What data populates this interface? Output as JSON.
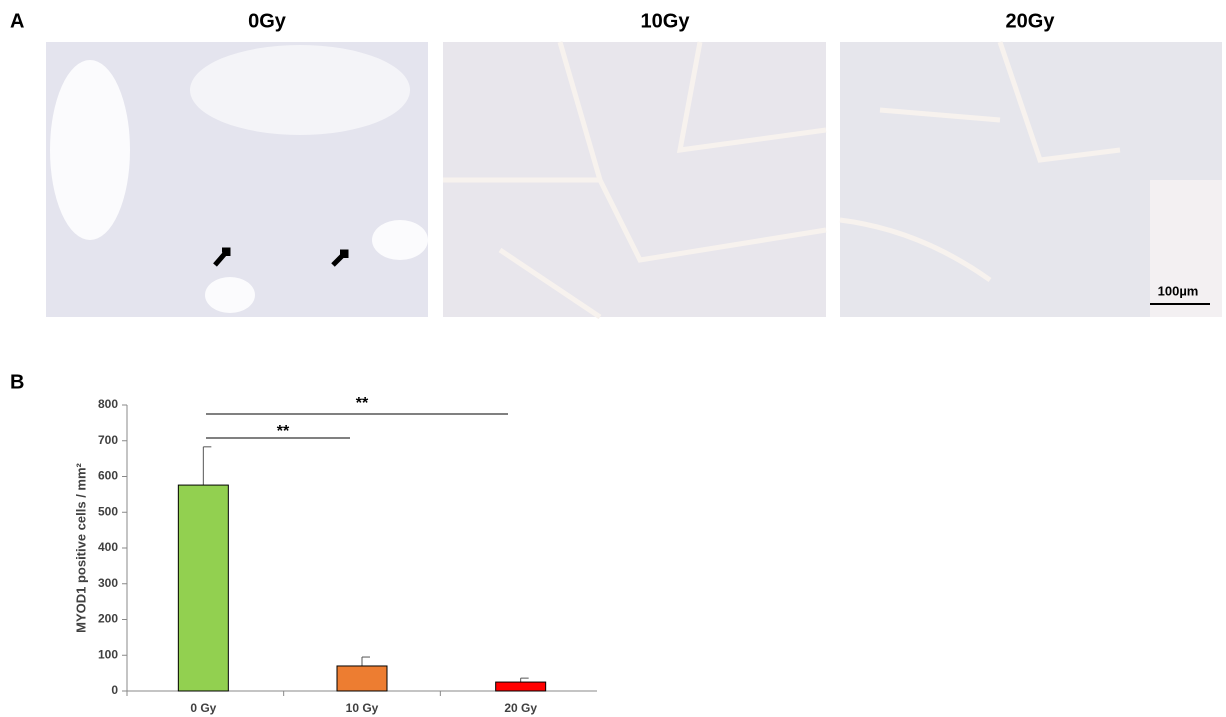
{
  "panel_a": {
    "label": "A",
    "titles": [
      "0Gy",
      "10Gy",
      "20Gy"
    ],
    "scale_bar": "100µm"
  },
  "panel_b": {
    "label": "B"
  },
  "chart_data": {
    "type": "bar",
    "y_label": "MYOD1 positive cells / mm²",
    "categories": [
      "0 Gy",
      "10 Gy",
      "20 Gy"
    ],
    "values": [
      576,
      70,
      25
    ],
    "errors": [
      107,
      25,
      11
    ],
    "colors": [
      "#92d050",
      "#ed7d31",
      "#ff0000"
    ],
    "ylim": [
      0,
      800
    ],
    "yticks": [
      0,
      100,
      200,
      300,
      400,
      500,
      600,
      700,
      800
    ],
    "annotations": [
      "**",
      "**"
    ]
  }
}
